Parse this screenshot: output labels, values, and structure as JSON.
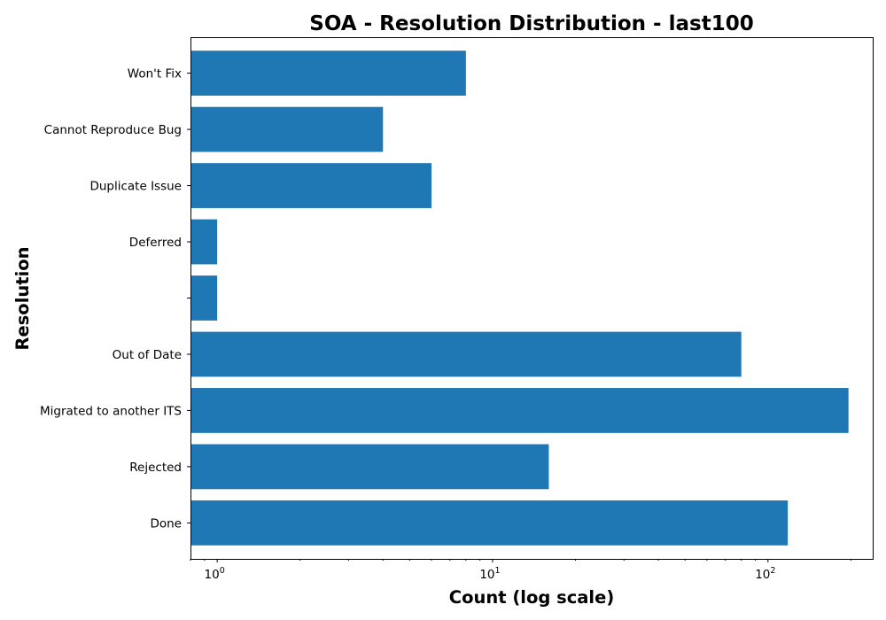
{
  "chart_data": {
    "type": "bar",
    "orientation": "horizontal",
    "title": "SOA - Resolution Distribution - last100",
    "xlabel": "Count (log scale)",
    "ylabel": "Resolution",
    "x_scale": "log",
    "xlim": [
      0.8,
      240
    ],
    "x_major_ticks": [
      {
        "value": 1,
        "base": "10",
        "exp": "0"
      },
      {
        "value": 10,
        "base": "10",
        "exp": "1"
      },
      {
        "value": 100,
        "base": "10",
        "exp": "2"
      }
    ],
    "grid": false,
    "bar_color": "#1f77b4",
    "categories": [
      "Done",
      "Rejected",
      "Migrated to another ITS",
      "Out of Date",
      "",
      "Deferred",
      "Duplicate Issue",
      "Cannot Reproduce Bug",
      "Won't Fix"
    ],
    "values": [
      118,
      16,
      196,
      80,
      1,
      1,
      6,
      4,
      8
    ]
  }
}
